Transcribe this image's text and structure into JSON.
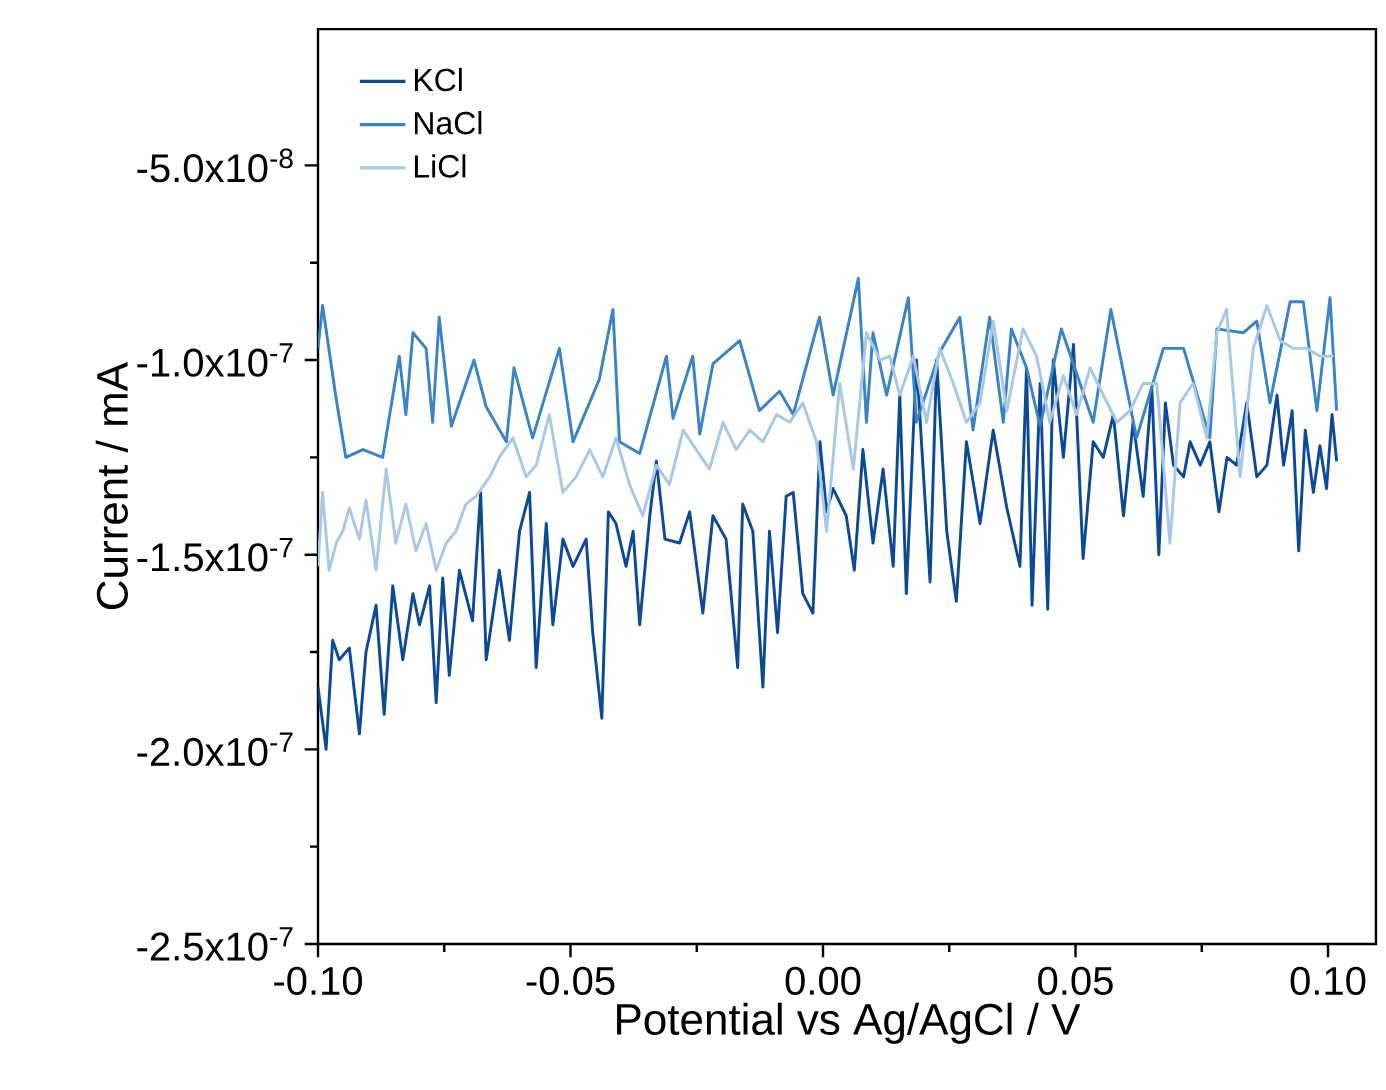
{
  "chart_data": {
    "type": "line",
    "xlabel": "Potential vs Ag/AgCl / V",
    "ylabel": "Current / mA",
    "xlim": [
      -0.1,
      0.1095
    ],
    "ylim": [
      -2.5e-07,
      -1.5e-08
    ],
    "xticks": [
      {
        "value": -0.1,
        "label": "-0.10"
      },
      {
        "value": -0.05,
        "label": "-0.05"
      },
      {
        "value": 0,
        "label": "0.00"
      },
      {
        "value": 0.05,
        "label": "0.05"
      },
      {
        "value": 0.1,
        "label": "0.10"
      }
    ],
    "yticks": [
      {
        "value": -2.5e-07,
        "label": "-2.5x10$^{-7}$"
      },
      {
        "value": -2e-07,
        "label": "-2.0x10$^{-7}$"
      },
      {
        "value": -1.5e-07,
        "label": "-1.5x10$^{-7}$"
      },
      {
        "value": -1e-07,
        "label": "-1.0x10$^{-7}$"
      },
      {
        "value": -5e-08,
        "label": "-5.0x10$^{-8}$"
      }
    ],
    "legend": "top left",
    "series": [
      {
        "name": "KCl",
        "color": "#0d4a96",
        "x": [
          -0.1,
          -0.0984,
          -0.0971,
          -0.0958,
          -0.0938,
          -0.0918,
          -0.0905,
          -0.0885,
          -0.0869,
          -0.0852,
          -0.0832,
          -0.0812,
          -0.0799,
          -0.0779,
          -0.0766,
          -0.0753,
          -0.074,
          -0.072,
          -0.0694,
          -0.0678,
          -0.0667,
          -0.0641,
          -0.0621,
          -0.0601,
          -0.0581,
          -0.0568,
          -0.0548,
          -0.0535,
          -0.0515,
          -0.0495,
          -0.0469,
          -0.0456,
          -0.0438,
          -0.0425,
          -0.041,
          -0.039,
          -0.0376,
          -0.0363,
          -0.0343,
          -0.033,
          -0.0313,
          -0.0284,
          -0.0264,
          -0.0238,
          -0.0218,
          -0.0192,
          -0.0169,
          -0.0159,
          -0.0139,
          -0.0119,
          -0.0106,
          -0.009,
          -0.0073,
          -0.0059,
          -0.004,
          -0.002,
          -0.0006,
          0.0007,
          0.002,
          0.0046,
          0.0062,
          0.0079,
          0.0099,
          0.0119,
          0.0139,
          0.0152,
          0.0165,
          0.0185,
          0.0212,
          0.0225,
          0.0245,
          0.0264,
          0.0284,
          0.0311,
          0.0337,
          0.0364,
          0.039,
          0.0403,
          0.0414,
          0.043,
          0.0445,
          0.0456,
          0.0476,
          0.0496,
          0.0515,
          0.0535,
          0.0555,
          0.0575,
          0.0595,
          0.0614,
          0.0634,
          0.0651,
          0.0665,
          0.0678,
          0.0694,
          0.0714,
          0.0727,
          0.0747,
          0.0766,
          0.0784,
          0.08,
          0.0819,
          0.0839,
          0.0859,
          0.0879,
          0.0899,
          0.0912,
          0.0929,
          0.0942,
          0.0955,
          0.0971,
          0.0984,
          0.0997,
          0.1008,
          0.1017
        ],
        "values": [
          -1.84e-07,
          -2e-07,
          -1.72e-07,
          -1.77e-07,
          -1.74e-07,
          -1.96e-07,
          -1.75e-07,
          -1.63e-07,
          -1.91e-07,
          -1.58e-07,
          -1.77e-07,
          -1.6e-07,
          -1.68e-07,
          -1.58e-07,
          -1.88e-07,
          -1.56e-07,
          -1.81e-07,
          -1.54e-07,
          -1.67e-07,
          -1.34e-07,
          -1.77e-07,
          -1.54e-07,
          -1.72e-07,
          -1.44e-07,
          -1.34e-07,
          -1.79e-07,
          -1.42e-07,
          -1.68e-07,
          -1.46e-07,
          -1.53e-07,
          -1.46e-07,
          -1.7e-07,
          -1.92e-07,
          -1.39e-07,
          -1.42e-07,
          -1.53e-07,
          -1.44e-07,
          -1.68e-07,
          -1.4e-07,
          -1.26e-07,
          -1.46e-07,
          -1.47e-07,
          -1.39e-07,
          -1.65e-07,
          -1.4e-07,
          -1.46e-07,
          -1.79e-07,
          -1.37e-07,
          -1.44e-07,
          -1.84e-07,
          -1.44e-07,
          -1.7e-07,
          -1.35e-07,
          -1.34e-07,
          -1.6e-07,
          -1.65e-07,
          -1.21e-07,
          -1.39e-07,
          -1.33e-07,
          -1.4e-07,
          -1.54e-07,
          -1.23e-07,
          -1.47e-07,
          -1.28e-07,
          -1.53e-07,
          -1.09e-07,
          -1.6e-07,
          -1e-07,
          -1.57e-07,
          -1e-07,
          -1.44e-07,
          -1.62e-07,
          -1.21e-07,
          -1.42e-07,
          -1.18e-07,
          -1.38e-07,
          -1.53e-07,
          -1.02e-07,
          -1.63e-07,
          -1.06e-07,
          -1.64e-07,
          -1e-07,
          -1.25e-07,
          -9.6e-08,
          -1.51e-07,
          -1.21e-07,
          -1.25e-07,
          -1.14e-07,
          -1.4e-07,
          -1.16e-07,
          -1.35e-07,
          -1.07e-07,
          -1.5e-07,
          -1.11e-07,
          -1.27e-07,
          -1.3e-07,
          -1.21e-07,
          -1.27e-07,
          -1.21e-07,
          -1.39e-07,
          -1.25e-07,
          -1.27e-07,
          -1.11e-07,
          -1.3e-07,
          -1.27e-07,
          -1.09e-07,
          -1.27e-07,
          -1.13e-07,
          -1.49e-07,
          -1.18e-07,
          -1.34e-07,
          -1.22e-07,
          -1.33e-07,
          -1.14e-07,
          -1.26e-07
        ]
      },
      {
        "name": "NaCl",
        "color": "#3a84c6",
        "x": [
          -0.1,
          -0.0991,
          -0.0964,
          -0.0945,
          -0.0911,
          -0.0872,
          -0.0839,
          -0.0826,
          -0.0812,
          -0.0786,
          -0.0773,
          -0.076,
          -0.0736,
          -0.0691,
          -0.0667,
          -0.0627,
          -0.0612,
          -0.0575,
          -0.0522,
          -0.0495,
          -0.0443,
          -0.0416,
          -0.0403,
          -0.0363,
          -0.031,
          -0.0297,
          -0.0258,
          -0.0244,
          -0.0218,
          -0.0165,
          -0.0126,
          -0.0086,
          -0.0059,
          -0.0007,
          0.002,
          0.007,
          0.0086,
          0.0099,
          0.0126,
          0.0169,
          0.0185,
          0.0231,
          0.0271,
          0.0297,
          0.033,
          0.0357,
          0.0373,
          0.0403,
          0.043,
          0.0472,
          0.0509,
          0.0535,
          0.057,
          0.0621,
          0.0674,
          0.0714,
          0.0766,
          0.078,
          0.0832,
          0.0859,
          0.0885,
          0.0925,
          0.0951,
          0.0978,
          0.1004,
          0.1017
        ],
        "values": [
          -9.7e-08,
          -8.6e-08,
          -1.1e-07,
          -1.25e-07,
          -1.23e-07,
          -1.25e-07,
          -9.9e-08,
          -1.14e-07,
          -9.3e-08,
          -9.7e-08,
          -1.16e-07,
          -8.9e-08,
          -1.17e-07,
          -1e-07,
          -1.12e-07,
          -1.21e-07,
          -1.02e-07,
          -1.2e-07,
          -9.7e-08,
          -1.21e-07,
          -1.05e-07,
          -8.7e-08,
          -1.21e-07,
          -1.24e-07,
          -9.9e-08,
          -1.15e-07,
          -9.9e-08,
          -1.19e-07,
          -1.01e-07,
          -9.5e-08,
          -1.13e-07,
          -1.08e-07,
          -1.14e-07,
          -8.9e-08,
          -1.09e-07,
          -7.9e-08,
          -1.16e-07,
          -9.3e-08,
          -1.09e-07,
          -8.4e-08,
          -1.16e-07,
          -9.8e-08,
          -8.9e-08,
          -1.18e-07,
          -8.9e-08,
          -1.16e-07,
          -9.2e-08,
          -1.02e-07,
          -1.17e-07,
          -9.2e-08,
          -1.06e-07,
          -1.16e-07,
          -8.7e-08,
          -1.2e-07,
          -9.7e-08,
          -9.7e-08,
          -1.2e-07,
          -9.2e-08,
          -9.3e-08,
          -9e-08,
          -1.11e-07,
          -8.5e-08,
          -8.5e-08,
          -1.13e-07,
          -8.4e-08,
          -1.13e-07
        ]
      },
      {
        "name": "LiCl",
        "color": "#a8c9e6",
        "x": [
          -0.1,
          -0.0991,
          -0.0978,
          -0.0964,
          -0.0951,
          -0.0938,
          -0.0918,
          -0.0905,
          -0.0885,
          -0.0865,
          -0.0846,
          -0.0826,
          -0.0806,
          -0.0786,
          -0.0766,
          -0.0746,
          -0.0727,
          -0.0707,
          -0.0687,
          -0.066,
          -0.0641,
          -0.0614,
          -0.0588,
          -0.0568,
          -0.0542,
          -0.0515,
          -0.0489,
          -0.0462,
          -0.0436,
          -0.041,
          -0.0383,
          -0.0357,
          -0.033,
          -0.0304,
          -0.0277,
          -0.0251,
          -0.0225,
          -0.0198,
          -0.0172,
          -0.0145,
          -0.0119,
          -0.0092,
          -0.0066,
          -0.004,
          -0.0013,
          0.0007,
          0.0033,
          0.006,
          0.0086,
          0.0113,
          0.0132,
          0.0152,
          0.0179,
          0.0205,
          0.0231,
          0.0258,
          0.0284,
          0.0311,
          0.0337,
          0.0364,
          0.0396,
          0.0423,
          0.0449,
          0.0476,
          0.0502,
          0.0529,
          0.0555,
          0.0582,
          0.0608,
          0.0634,
          0.0661,
          0.0687,
          0.0707,
          0.0733,
          0.076,
          0.078,
          0.0799,
          0.0826,
          0.0852,
          0.0879,
          0.0905,
          0.0931,
          0.0958,
          0.0984,
          0.1011
        ],
        "values": [
          -1.53e-07,
          -1.34e-07,
          -1.54e-07,
          -1.47e-07,
          -1.44e-07,
          -1.38e-07,
          -1.46e-07,
          -1.36e-07,
          -1.54e-07,
          -1.28e-07,
          -1.47e-07,
          -1.37e-07,
          -1.49e-07,
          -1.42e-07,
          -1.54e-07,
          -1.47e-07,
          -1.44e-07,
          -1.37e-07,
          -1.35e-07,
          -1.3e-07,
          -1.25e-07,
          -1.2e-07,
          -1.3e-07,
          -1.27e-07,
          -1.14e-07,
          -1.34e-07,
          -1.3e-07,
          -1.23e-07,
          -1.3e-07,
          -1.2e-07,
          -1.32e-07,
          -1.4e-07,
          -1.27e-07,
          -1.32e-07,
          -1.18e-07,
          -1.23e-07,
          -1.28e-07,
          -1.16e-07,
          -1.23e-07,
          -1.18e-07,
          -1.21e-07,
          -1.14e-07,
          -1.16e-07,
          -1.11e-07,
          -1.21e-07,
          -1.44e-07,
          -1.06e-07,
          -1.28e-07,
          -9.3e-08,
          -1e-07,
          -9.9e-08,
          -1.09e-07,
          -9.9e-08,
          -1.16e-07,
          -9.7e-08,
          -1.06e-07,
          -1.16e-07,
          -1.11e-07,
          -9e-08,
          -1.13e-07,
          -9.2e-08,
          -9.9e-08,
          -1.16e-07,
          -1.04e-07,
          -1.14e-07,
          -1.02e-07,
          -1.09e-07,
          -1.16e-07,
          -1.13e-07,
          -1.06e-07,
          -1.06e-07,
          -1.47e-07,
          -1.11e-07,
          -1.06e-07,
          -1.2e-07,
          -9.3e-08,
          -8.7e-08,
          -1.3e-07,
          -9.7e-08,
          -8.6e-08,
          -9.5e-08,
          -9.7e-08,
          -9.7e-08,
          -9.9e-08,
          -9.9e-08
        ]
      }
    ]
  }
}
